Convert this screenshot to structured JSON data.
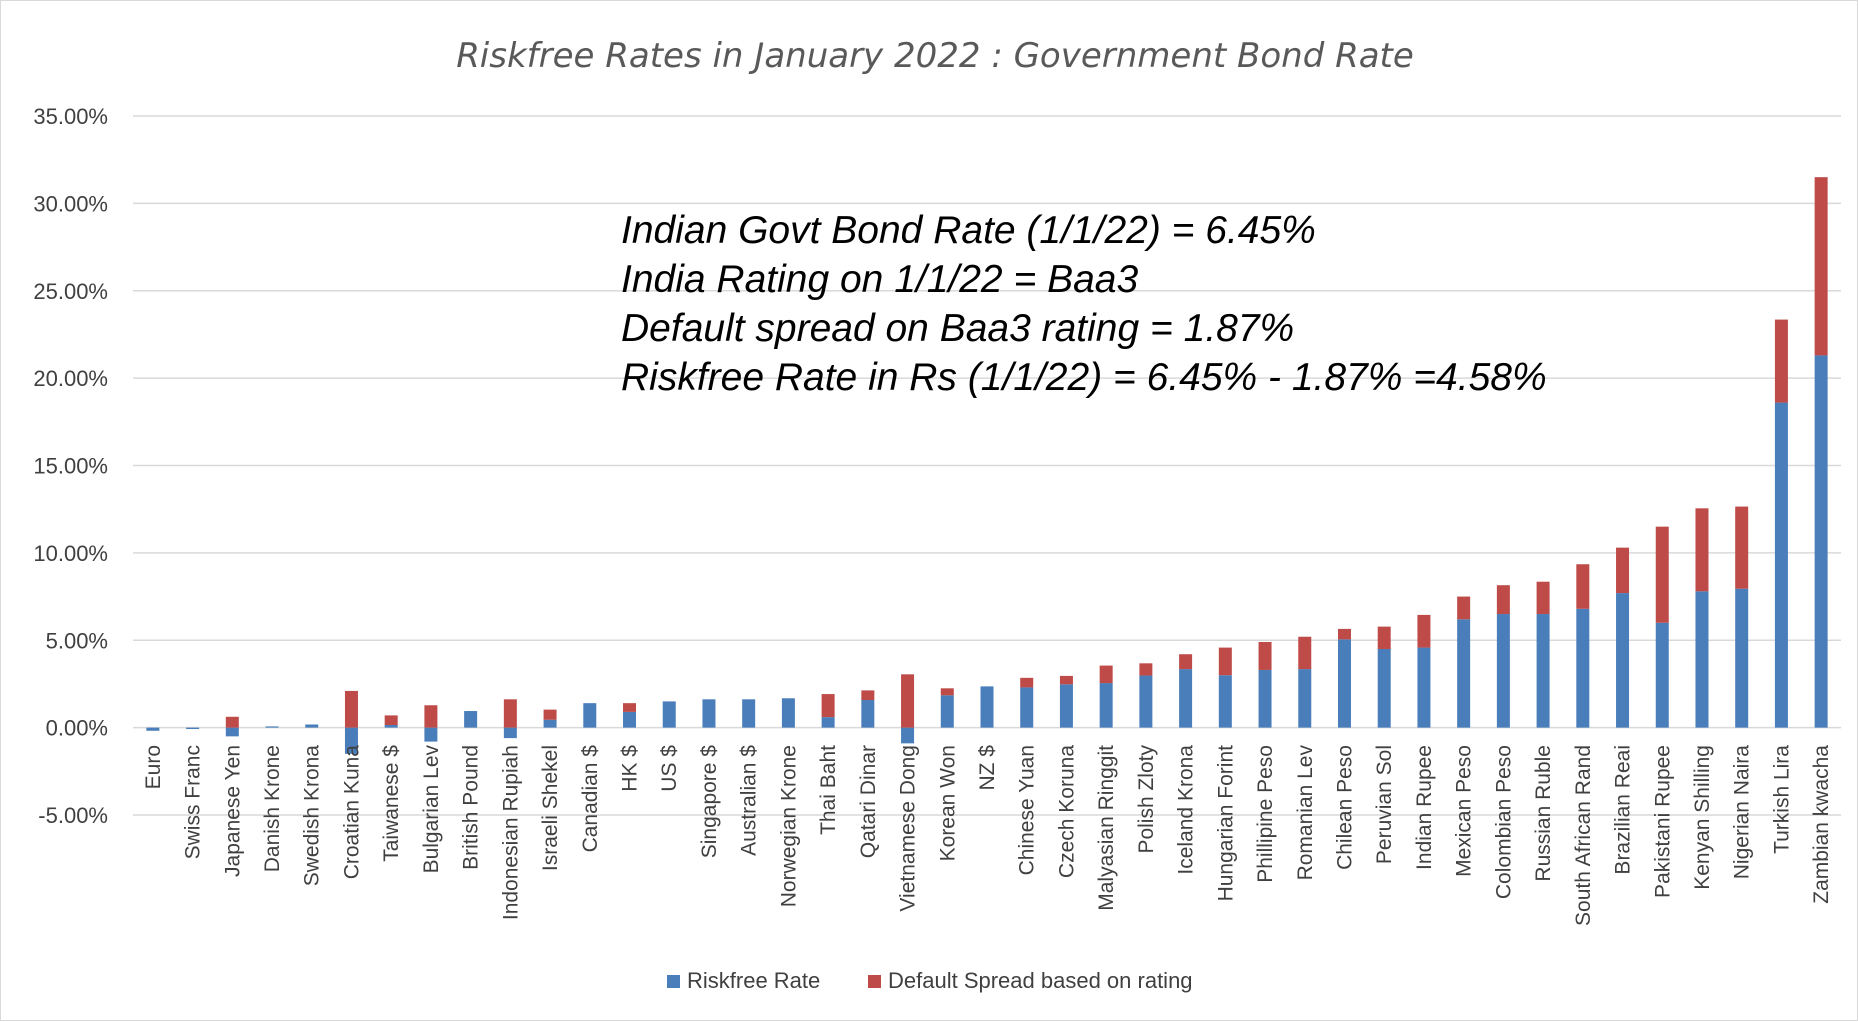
{
  "chart_data": {
    "type": "bar",
    "stacked": true,
    "title": "Riskfree Rates in January 2022 : Government Bond Rate",
    "xlabel": "",
    "ylabel": "",
    "ylim": [
      -5,
      35
    ],
    "yticks": [
      "35.00%",
      "30.00%",
      "25.00%",
      "20.00%",
      "15.00%",
      "10.00%",
      "5.00%",
      "0.00%",
      "-5.00%"
    ],
    "grid": true,
    "legend_position": "bottom",
    "categories": [
      "Euro",
      "Swiss Franc",
      "Japanese Yen",
      "Danish Krone",
      "Swedish Krona",
      "Croatian Kuna",
      "Taiwanese $",
      "Bulgarian Lev",
      "British Pound",
      "Indonesian Rupiah",
      "Israeli Shekel",
      "Canadian $",
      "HK $",
      "US $",
      "Singapore $",
      "Australian $",
      "Norwegian Krone",
      "Thai Baht",
      "Qatari Dinar",
      "Vietnamese Dong",
      "Korean Won",
      "NZ $",
      "Chinese Yuan",
      "Czech Koruna",
      "Malyasian Ringgit",
      "Polish Zloty",
      "Iceland Krona",
      "Hungarian Forint",
      "Phillipine Peso",
      "Romanian Lev",
      "Chilean Peso",
      "Peruvian Sol",
      "Indian Rupee",
      "Mexican Peso",
      "Colombian Peso",
      "Russian Ruble",
      "South African Rand",
      "Brazilian Reai",
      "Pakistani Rupee",
      "Kenyan Shilling",
      "Nigerian Naira",
      "Turkish Lira",
      "Zambian kwacha"
    ],
    "series": [
      {
        "name": "Riskfree Rate",
        "color": "#4a7ebb",
        "values": [
          -0.18,
          -0.08,
          -0.5,
          0.07,
          0.18,
          -1.5,
          0.15,
          -0.8,
          0.95,
          -0.6,
          0.45,
          1.4,
          0.9,
          1.5,
          1.62,
          1.62,
          1.68,
          0.6,
          1.58,
          -0.9,
          1.85,
          2.36,
          2.3,
          2.48,
          2.55,
          2.98,
          3.35,
          3.0,
          3.3,
          3.35,
          5.05,
          4.5,
          4.58,
          6.2,
          6.5,
          6.5,
          6.8,
          7.7,
          6.0,
          7.8,
          7.95,
          18.6,
          21.3
        ]
      },
      {
        "name": "Default Spread based on rating",
        "color": "#be4b48",
        "values": [
          0,
          0,
          0.62,
          0,
          0,
          2.1,
          0.55,
          1.28,
          0,
          1.62,
          0.58,
          0,
          0.5,
          0,
          0,
          0,
          0,
          1.32,
          0.55,
          3.05,
          0.4,
          0,
          0.55,
          0.48,
          1.0,
          0.7,
          0.85,
          1.58,
          1.6,
          1.85,
          0.6,
          1.28,
          1.87,
          1.3,
          1.65,
          1.85,
          2.55,
          2.6,
          5.5,
          4.75,
          4.7,
          4.75,
          10.2
        ]
      }
    ],
    "annotations": [
      "Indian Govt Bond Rate (1/1/22) = 6.45%",
      "India Rating on 1/1/22 = Baa3",
      "Default spread on Baa3 rating = 1.87%",
      "Riskfree Rate in Rs (1/1/22) = 6.45% - 1.87% =4.58%"
    ]
  }
}
